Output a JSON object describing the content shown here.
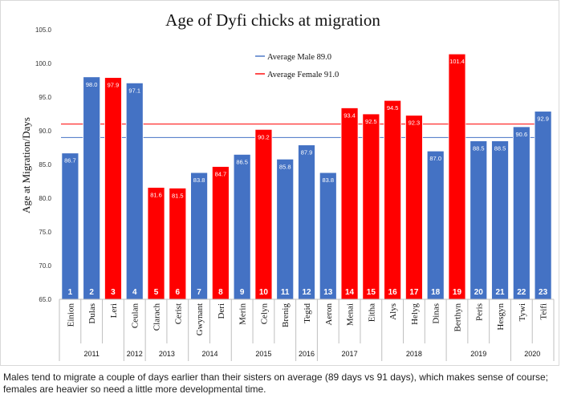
{
  "caption": "Males tend to migrate a couple of days earlier than their sisters on average (89 days vs 91 days), which makes sense of course; females are heavier so need a little more developmental time.",
  "chart_data": {
    "type": "bar",
    "title": "Age of Dyfi chicks at migration",
    "xlabel": "",
    "ylabel": "Age at Migration/Days",
    "ylim": [
      65,
      105
    ],
    "yticks": [
      "65.0",
      "70.0",
      "75.0",
      "80.0",
      "85.0",
      "90.0",
      "95.0",
      "100.0",
      "105.0"
    ],
    "grid": false,
    "legend_position": "top-center",
    "colors": {
      "male": "#4472c4",
      "female": "#ff0000"
    },
    "categories": [
      "Einion",
      "Dulas",
      "Leri",
      "Ceulan",
      "Clarach",
      "Cerist",
      "Gwynant",
      "Deri",
      "Merin",
      "Celyn",
      "Brenig",
      "Tegid",
      "Aeron",
      "Menai",
      "Eitha",
      "Alys",
      "Helyg",
      "Dinas",
      "Berthyn",
      "Peris",
      "Hesgyn",
      "Tywi",
      "Teifi"
    ],
    "numbers": [
      "1",
      "2",
      "3",
      "4",
      "5",
      "6",
      "7",
      "8",
      "9",
      "10",
      "11",
      "12",
      "13",
      "14",
      "15",
      "16",
      "17",
      "18",
      "19",
      "20",
      "21",
      "22",
      "23"
    ],
    "values": [
      86.7,
      98.0,
      97.9,
      97.1,
      81.6,
      81.5,
      83.8,
      84.7,
      86.5,
      90.2,
      85.8,
      87.9,
      83.8,
      93.4,
      92.5,
      94.5,
      92.3,
      87.0,
      101.4,
      88.5,
      88.5,
      90.6,
      92.9
    ],
    "labels": [
      "86.7",
      "98.0",
      "97.9",
      "97.1",
      "81.6",
      "81.5",
      "83.8",
      "84.7",
      "86.5",
      "90.2",
      "85.8",
      "87.9",
      "83.8",
      "93.4",
      "92.5",
      "94.5",
      "92.3",
      "87.0",
      "101.4",
      "88.5",
      "88.5",
      "90.6",
      "92.9"
    ],
    "sex": [
      "male",
      "male",
      "female",
      "male",
      "female",
      "female",
      "male",
      "female",
      "male",
      "female",
      "male",
      "male",
      "male",
      "female",
      "female",
      "female",
      "female",
      "male",
      "female",
      "male",
      "male",
      "male",
      "male"
    ],
    "year_groups": [
      {
        "year": "2011",
        "count": 3
      },
      {
        "year": "2012",
        "count": 1
      },
      {
        "year": "2013",
        "count": 2
      },
      {
        "year": "2014",
        "count": 2
      },
      {
        "year": "2015",
        "count": 3
      },
      {
        "year": "2016",
        "count": 1
      },
      {
        "year": "2017",
        "count": 3
      },
      {
        "year": "2018",
        "count": 3
      },
      {
        "year": "2019",
        "count": 3
      },
      {
        "year": "2020",
        "count": 2
      }
    ],
    "reference_lines": [
      {
        "name": "Average Male 89.0",
        "value": 89.0,
        "color": "#4472c4"
      },
      {
        "name": "Average Female 91.0",
        "value": 91.0,
        "color": "#ff0000"
      }
    ]
  }
}
